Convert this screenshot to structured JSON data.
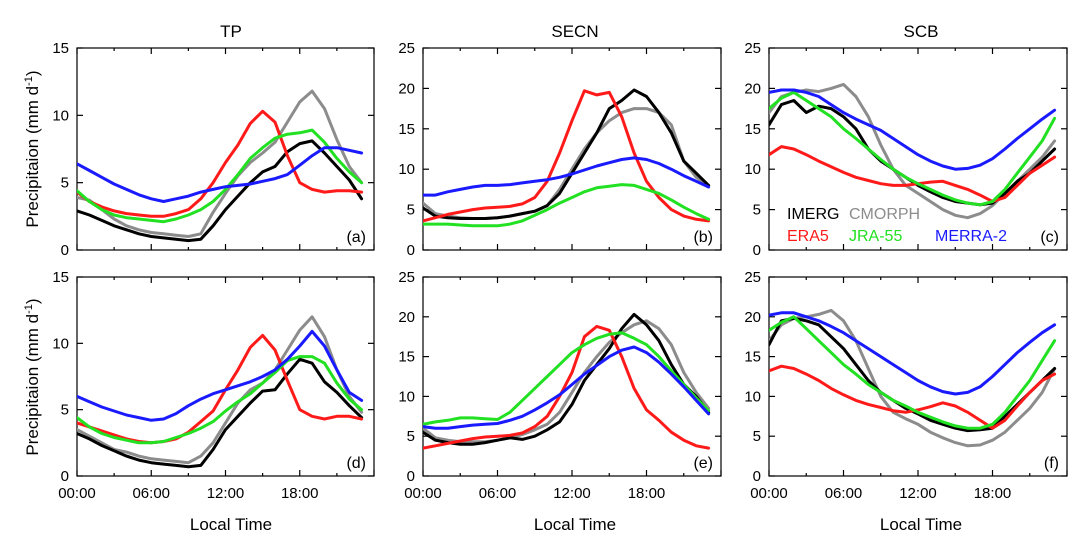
{
  "figure": {
    "ylabel": "Precipitaion (mm d",
    "ylabel_sup": "-1",
    "ylabel_close": ")",
    "xlabel": "Local Time"
  },
  "legend": [
    {
      "name": "IMERG",
      "color": "#000000"
    },
    {
      "name": "CMORPH",
      "color": "#8c8c8c"
    },
    {
      "name": "ERA5",
      "color": "#ff1a1a"
    },
    {
      "name": "JRA-55",
      "color": "#22e022"
    },
    {
      "name": "MERRA-2",
      "color": "#1a1aff"
    }
  ],
  "chart_data": [
    {
      "type": "line",
      "title": "TP",
      "tag": "(a)",
      "x": [
        0,
        1,
        2,
        3,
        4,
        5,
        6,
        7,
        8,
        9,
        10,
        11,
        12,
        13,
        14,
        15,
        16,
        17,
        18,
        19,
        20,
        21,
        22,
        23
      ],
      "xticks": [
        "00:00",
        "06:00",
        "12:00",
        "18:00"
      ],
      "ylim": [
        0,
        15
      ],
      "yticks": [
        0,
        5,
        10,
        15
      ],
      "series": [
        {
          "name": "IMERG",
          "values": [
            2.9,
            2.6,
            2.2,
            1.8,
            1.5,
            1.2,
            1.0,
            0.9,
            0.8,
            0.7,
            0.8,
            1.8,
            3.0,
            4.0,
            5.0,
            5.8,
            6.2,
            7.3,
            7.9,
            8.1,
            7.2,
            6.2,
            5.2,
            3.8
          ]
        },
        {
          "name": "CMORPH",
          "values": [
            3.9,
            3.7,
            3.0,
            2.3,
            1.8,
            1.5,
            1.3,
            1.2,
            1.1,
            1.0,
            1.2,
            2.8,
            4.2,
            5.5,
            6.5,
            7.2,
            8.0,
            9.5,
            11.0,
            11.8,
            10.5,
            8.2,
            6.2,
            5.0
          ]
        },
        {
          "name": "ERA5",
          "values": [
            4.3,
            3.6,
            3.2,
            2.9,
            2.7,
            2.6,
            2.5,
            2.5,
            2.7,
            3.0,
            3.8,
            5.0,
            6.5,
            7.8,
            9.4,
            10.3,
            9.5,
            7.0,
            5.0,
            4.5,
            4.3,
            4.4,
            4.4,
            4.3
          ]
        },
        {
          "name": "JRA-55",
          "values": [
            4.4,
            3.6,
            3.0,
            2.6,
            2.4,
            2.3,
            2.2,
            2.1,
            2.3,
            2.6,
            3.0,
            3.6,
            4.5,
            5.6,
            6.8,
            7.6,
            8.3,
            8.6,
            8.7,
            8.9,
            8.0,
            6.8,
            5.8,
            5.0
          ]
        },
        {
          "name": "MERRA-2",
          "values": [
            6.4,
            5.9,
            5.4,
            4.9,
            4.5,
            4.1,
            3.8,
            3.6,
            3.8,
            4.0,
            4.3,
            4.5,
            4.7,
            4.8,
            4.9,
            5.1,
            5.3,
            5.6,
            6.3,
            7.0,
            7.6,
            7.6,
            7.4,
            7.2
          ]
        }
      ]
    },
    {
      "type": "line",
      "title": "SECN",
      "tag": "(b)",
      "x": [
        0,
        1,
        2,
        3,
        4,
        5,
        6,
        7,
        8,
        9,
        10,
        11,
        12,
        13,
        14,
        15,
        16,
        17,
        18,
        19,
        20,
        21,
        22,
        23
      ],
      "xticks": [
        "00:00",
        "06:00",
        "12:00",
        "18:00"
      ],
      "ylim": [
        0,
        25
      ],
      "yticks": [
        0,
        5,
        10,
        15,
        20,
        25
      ],
      "series": [
        {
          "name": "IMERG",
          "values": [
            5.2,
            4.2,
            4.0,
            3.9,
            3.9,
            3.9,
            4.0,
            4.2,
            4.5,
            4.8,
            5.5,
            7.0,
            9.5,
            12.0,
            14.5,
            17.5,
            18.5,
            19.8,
            19.0,
            17.0,
            14.5,
            11.0,
            9.5,
            8.0
          ]
        },
        {
          "name": "CMORPH",
          "values": [
            5.8,
            4.5,
            4.2,
            4.0,
            3.9,
            3.9,
            4.0,
            4.2,
            4.5,
            4.8,
            5.5,
            7.5,
            10.0,
            12.5,
            14.5,
            16.0,
            17.0,
            17.5,
            17.5,
            17.0,
            15.5,
            11.0,
            9.0,
            8.0
          ]
        },
        {
          "name": "ERA5",
          "values": [
            3.6,
            4.0,
            4.4,
            4.7,
            5.0,
            5.2,
            5.3,
            5.4,
            5.7,
            6.5,
            8.5,
            12.0,
            16.0,
            19.7,
            19.2,
            19.5,
            16.5,
            12.0,
            8.5,
            6.5,
            5.0,
            4.2,
            3.8,
            3.6
          ]
        },
        {
          "name": "JRA-55",
          "values": [
            3.2,
            3.2,
            3.2,
            3.1,
            3.0,
            3.0,
            3.0,
            3.2,
            3.6,
            4.3,
            5.0,
            5.8,
            6.5,
            7.2,
            7.7,
            7.9,
            8.1,
            8.0,
            7.5,
            7.0,
            6.2,
            5.3,
            4.5,
            3.8
          ]
        },
        {
          "name": "MERRA-2",
          "values": [
            6.8,
            6.8,
            7.2,
            7.5,
            7.8,
            8.0,
            8.0,
            8.1,
            8.3,
            8.5,
            8.7,
            9.0,
            9.4,
            9.9,
            10.4,
            10.8,
            11.2,
            11.4,
            11.2,
            10.7,
            10.0,
            9.2,
            8.5,
            7.8
          ]
        }
      ]
    },
    {
      "type": "line",
      "title": "SCB",
      "tag": "(c)",
      "x": [
        0,
        1,
        2,
        3,
        4,
        5,
        6,
        7,
        8,
        9,
        10,
        11,
        12,
        13,
        14,
        15,
        16,
        17,
        18,
        19,
        20,
        21,
        22,
        23
      ],
      "xticks": [
        "00:00",
        "06:00",
        "12:00",
        "18:00"
      ],
      "ylim": [
        0,
        25
      ],
      "yticks": [
        0,
        5,
        10,
        15,
        20,
        25
      ],
      "series": [
        {
          "name": "IMERG",
          "values": [
            15.5,
            18.0,
            18.5,
            17.0,
            17.8,
            17.5,
            16.5,
            15.0,
            12.5,
            11.0,
            10.0,
            9.0,
            8.0,
            7.2,
            6.5,
            6.0,
            5.8,
            5.6,
            5.8,
            7.0,
            8.5,
            9.5,
            11.0,
            12.5
          ]
        },
        {
          "name": "CMORPH",
          "values": [
            17.0,
            19.0,
            19.5,
            19.8,
            19.6,
            20.0,
            20.5,
            19.0,
            16.5,
            13.0,
            10.0,
            8.0,
            7.0,
            6.0,
            5.0,
            4.3,
            4.0,
            4.5,
            5.5,
            7.0,
            8.5,
            10.0,
            11.5,
            13.5
          ]
        },
        {
          "name": "ERA5",
          "values": [
            11.8,
            12.8,
            12.5,
            11.8,
            11.0,
            10.3,
            9.6,
            9.0,
            8.6,
            8.2,
            8.0,
            8.0,
            8.2,
            8.4,
            8.5,
            8.0,
            7.5,
            6.8,
            6.0,
            6.5,
            8.0,
            9.5,
            10.5,
            11.5
          ]
        },
        {
          "name": "JRA-55",
          "values": [
            17.5,
            18.8,
            19.5,
            18.5,
            17.5,
            16.5,
            15.0,
            13.8,
            12.5,
            11.2,
            10.0,
            9.0,
            8.2,
            7.5,
            6.8,
            6.2,
            5.8,
            5.6,
            6.0,
            7.5,
            9.5,
            11.5,
            13.5,
            16.3
          ]
        },
        {
          "name": "MERRA-2",
          "values": [
            19.5,
            19.8,
            19.8,
            19.5,
            19.0,
            18.0,
            17.0,
            16.2,
            15.5,
            14.8,
            13.8,
            12.8,
            11.8,
            11.0,
            10.4,
            10.0,
            10.1,
            10.5,
            11.3,
            12.5,
            13.8,
            15.0,
            16.2,
            17.3
          ]
        }
      ]
    },
    {
      "type": "line",
      "title": "",
      "tag": "(d)",
      "x": [
        0,
        1,
        2,
        3,
        4,
        5,
        6,
        7,
        8,
        9,
        10,
        11,
        12,
        13,
        14,
        15,
        16,
        17,
        18,
        19,
        20,
        21,
        22,
        23
      ],
      "xticks": [
        "00:00",
        "06:00",
        "12:00",
        "18:00"
      ],
      "ylim": [
        0,
        15
      ],
      "yticks": [
        0,
        5,
        10,
        15
      ],
      "series": [
        {
          "name": "IMERG",
          "values": [
            3.2,
            2.8,
            2.3,
            1.9,
            1.5,
            1.2,
            1.0,
            0.9,
            0.8,
            0.7,
            0.8,
            2.0,
            3.5,
            4.5,
            5.5,
            6.4,
            6.5,
            7.7,
            8.8,
            8.5,
            7.1,
            6.3,
            5.3,
            4.4
          ]
        },
        {
          "name": "CMORPH",
          "values": [
            3.5,
            3.0,
            2.5,
            2.0,
            1.8,
            1.5,
            1.3,
            1.2,
            1.1,
            1.0,
            1.5,
            2.5,
            4.0,
            5.5,
            6.5,
            7.0,
            8.0,
            9.5,
            11.0,
            12.0,
            10.5,
            8.0,
            6.0,
            4.8
          ]
        },
        {
          "name": "ERA5",
          "values": [
            4.0,
            3.7,
            3.4,
            3.1,
            2.8,
            2.6,
            2.5,
            2.6,
            2.8,
            3.3,
            4.1,
            4.9,
            6.5,
            8.0,
            9.7,
            10.6,
            9.5,
            7.2,
            5.0,
            4.5,
            4.3,
            4.5,
            4.5,
            4.3
          ]
        },
        {
          "name": "JRA-55",
          "values": [
            4.4,
            3.7,
            3.2,
            2.9,
            2.7,
            2.5,
            2.5,
            2.6,
            2.9,
            3.2,
            3.6,
            4.1,
            4.9,
            5.6,
            6.2,
            7.0,
            7.8,
            8.7,
            9.0,
            9.0,
            8.5,
            7.0,
            5.8,
            5.0
          ]
        },
        {
          "name": "MERRA-2",
          "values": [
            6.0,
            5.6,
            5.2,
            4.9,
            4.6,
            4.4,
            4.2,
            4.3,
            4.7,
            5.3,
            5.8,
            6.2,
            6.5,
            6.8,
            7.1,
            7.5,
            8.0,
            8.8,
            9.8,
            10.9,
            9.8,
            8.0,
            6.3,
            5.7
          ]
        }
      ]
    },
    {
      "type": "line",
      "title": "",
      "tag": "(e)",
      "x": [
        0,
        1,
        2,
        3,
        4,
        5,
        6,
        7,
        8,
        9,
        10,
        11,
        12,
        13,
        14,
        15,
        16,
        17,
        18,
        19,
        20,
        21,
        22,
        23
      ],
      "xticks": [
        "00:00",
        "06:00",
        "12:00",
        "18:00"
      ],
      "ylim": [
        0,
        25
      ],
      "yticks": [
        0,
        5,
        10,
        15,
        20,
        25
      ],
      "series": [
        {
          "name": "IMERG",
          "values": [
            5.5,
            4.5,
            4.2,
            4.0,
            4.0,
            4.2,
            4.5,
            4.8,
            4.6,
            5.0,
            5.8,
            6.8,
            9.0,
            12.0,
            14.0,
            16.0,
            18.5,
            20.3,
            19.0,
            17.0,
            14.0,
            11.5,
            10.0,
            8.0
          ]
        },
        {
          "name": "CMORPH",
          "values": [
            6.0,
            4.8,
            4.5,
            4.3,
            4.3,
            4.3,
            4.5,
            4.8,
            5.2,
            5.8,
            6.5,
            8.0,
            10.5,
            13.0,
            15.0,
            16.8,
            18.0,
            19.0,
            19.5,
            18.5,
            16.5,
            13.0,
            10.5,
            8.5
          ]
        },
        {
          "name": "ERA5",
          "values": [
            3.5,
            3.8,
            4.1,
            4.4,
            4.7,
            4.9,
            5.0,
            5.1,
            5.4,
            6.2,
            7.5,
            10.0,
            13.0,
            17.5,
            18.8,
            18.3,
            15.0,
            11.0,
            8.3,
            7.0,
            5.5,
            4.5,
            3.8,
            3.5
          ]
        },
        {
          "name": "JRA-55",
          "values": [
            6.5,
            6.8,
            7.0,
            7.3,
            7.3,
            7.2,
            7.1,
            8.0,
            9.5,
            11.0,
            12.5,
            14.0,
            15.5,
            16.5,
            17.3,
            17.8,
            18.0,
            17.3,
            16.5,
            15.0,
            13.2,
            11.5,
            9.8,
            8.2
          ]
        },
        {
          "name": "MERRA-2",
          "values": [
            6.2,
            6.0,
            6.0,
            6.2,
            6.4,
            6.5,
            6.6,
            7.0,
            7.5,
            8.3,
            9.2,
            10.2,
            11.5,
            12.8,
            13.9,
            15.0,
            15.8,
            16.2,
            15.5,
            14.3,
            12.8,
            11.2,
            9.5,
            7.8
          ]
        }
      ]
    },
    {
      "type": "line",
      "title": "",
      "tag": "(f)",
      "x": [
        0,
        1,
        2,
        3,
        4,
        5,
        6,
        7,
        8,
        9,
        10,
        11,
        12,
        13,
        14,
        15,
        16,
        17,
        18,
        19,
        20,
        21,
        22,
        23
      ],
      "xticks": [
        "00:00",
        "06:00",
        "12:00",
        "18:00"
      ],
      "ylim": [
        0,
        25
      ],
      "yticks": [
        0,
        5,
        10,
        15,
        20,
        25
      ],
      "series": [
        {
          "name": "IMERG",
          "values": [
            16.5,
            19.5,
            19.8,
            19.5,
            19.0,
            17.5,
            16.0,
            14.0,
            12.0,
            10.5,
            9.5,
            8.5,
            7.8,
            7.0,
            6.5,
            6.0,
            5.7,
            5.8,
            6.0,
            7.5,
            9.0,
            10.5,
            12.0,
            13.5
          ]
        },
        {
          "name": "CMORPH",
          "values": [
            17.0,
            19.0,
            19.8,
            20.0,
            20.3,
            20.8,
            19.5,
            17.0,
            13.5,
            10.0,
            8.0,
            7.2,
            6.5,
            5.5,
            4.8,
            4.2,
            3.8,
            3.9,
            4.5,
            5.5,
            7.0,
            8.5,
            10.5,
            13.5
          ]
        },
        {
          "name": "ERA5",
          "values": [
            13.2,
            13.8,
            13.5,
            12.8,
            12.0,
            11.0,
            10.2,
            9.5,
            9.0,
            8.6,
            8.2,
            8.0,
            8.3,
            8.7,
            9.2,
            8.8,
            8.0,
            7.0,
            6.0,
            7.0,
            8.8,
            10.5,
            12.0,
            12.8
          ]
        },
        {
          "name": "JRA-55",
          "values": [
            18.3,
            19.3,
            20.0,
            18.5,
            17.0,
            15.5,
            14.0,
            12.8,
            11.5,
            10.5,
            9.5,
            8.8,
            8.0,
            7.4,
            6.8,
            6.3,
            6.0,
            6.0,
            6.5,
            8.0,
            10.0,
            12.0,
            14.5,
            17.0
          ]
        },
        {
          "name": "MERRA-2",
          "values": [
            20.2,
            20.5,
            20.5,
            20.0,
            19.5,
            18.8,
            18.0,
            17.0,
            16.0,
            15.0,
            14.0,
            13.0,
            12.0,
            11.2,
            10.6,
            10.3,
            10.5,
            11.2,
            12.5,
            14.0,
            15.5,
            16.8,
            18.0,
            19.0
          ]
        }
      ]
    }
  ]
}
